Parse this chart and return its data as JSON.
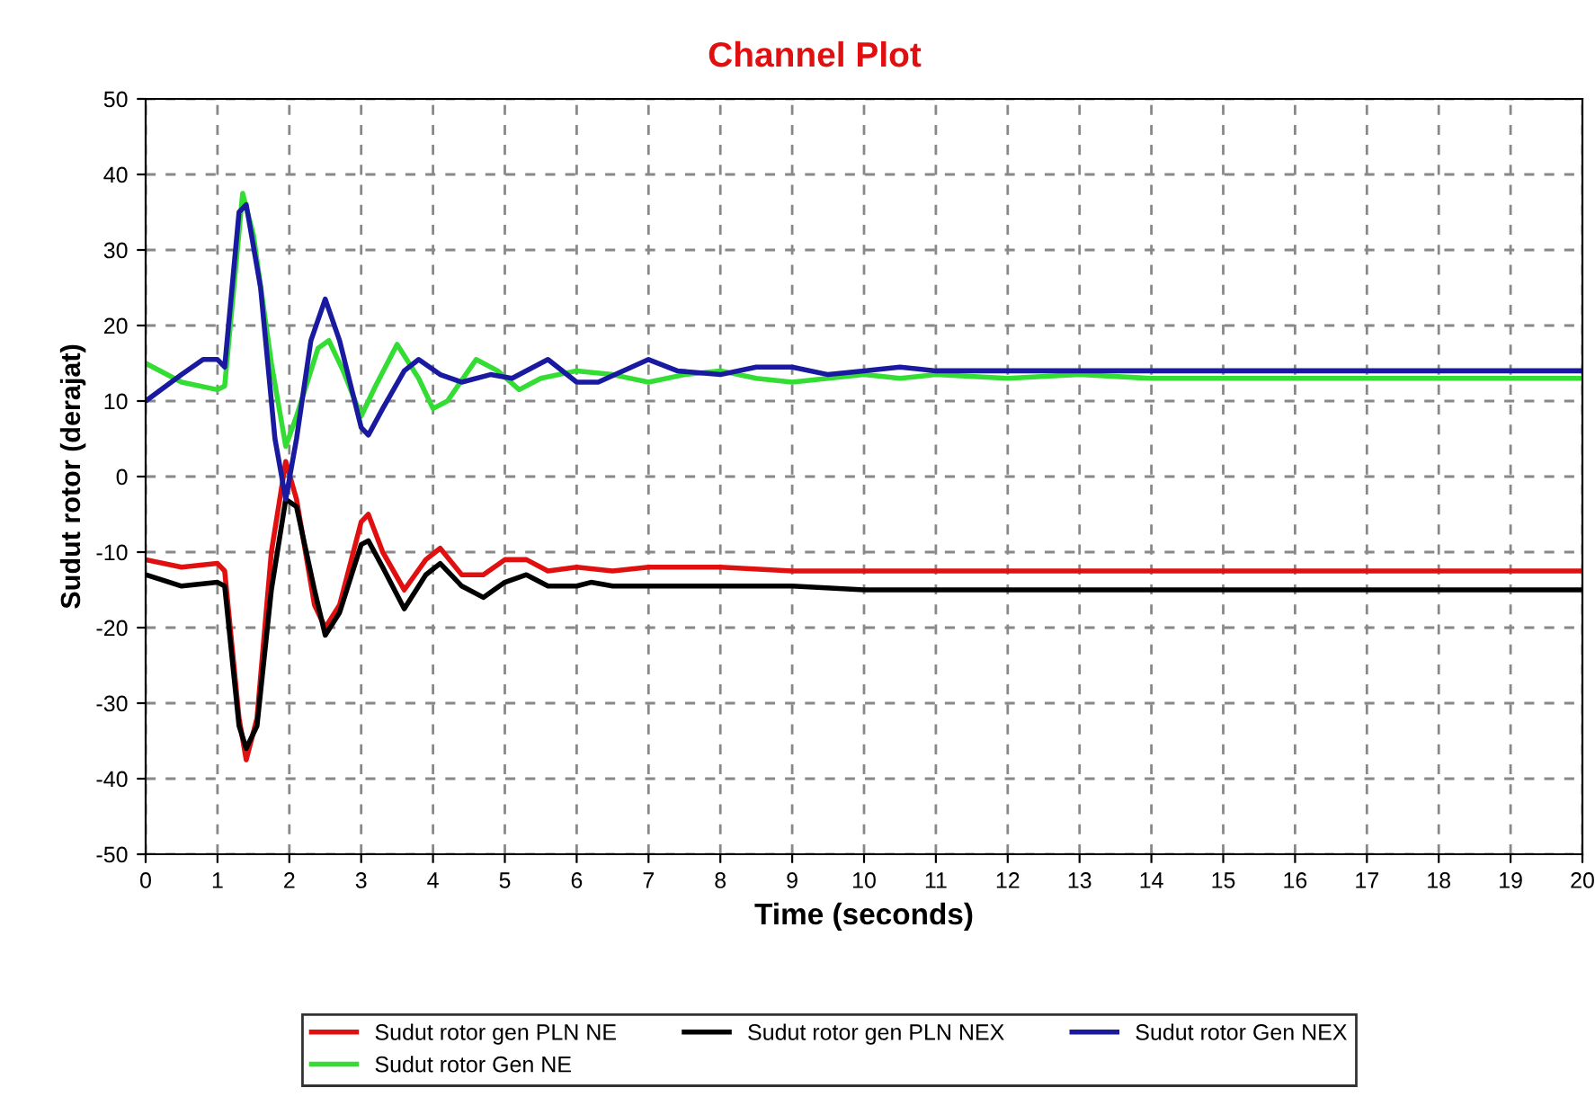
{
  "chart_data": {
    "type": "line",
    "title": "Channel Plot",
    "xlabel": "Time (seconds)",
    "ylabel": "Sudut rotor (derajat)",
    "xlim": [
      0,
      20
    ],
    "xticks": [
      0,
      1,
      2,
      3,
      4,
      5,
      6,
      7,
      8,
      9,
      10,
      11,
      12,
      13,
      14,
      15,
      16,
      17,
      18,
      19,
      20
    ],
    "ylim": [
      -50,
      50
    ],
    "yticks": [
      -50,
      -40,
      -30,
      -20,
      -10,
      0,
      10,
      20,
      30,
      40,
      50
    ],
    "grid": true,
    "legend": "bottom",
    "marker": "none",
    "line_style": "solid",
    "series": [
      {
        "name": "Sudut rotor gen PLN NE",
        "color": "#e01010",
        "x": [
          0,
          0.5,
          1.0,
          1.1,
          1.3,
          1.4,
          1.55,
          1.75,
          1.95,
          2.1,
          2.35,
          2.5,
          2.7,
          3.0,
          3.1,
          3.3,
          3.6,
          3.9,
          4.1,
          4.4,
          4.7,
          5.0,
          5.3,
          5.6,
          6.0,
          6.5,
          7,
          8,
          9,
          10,
          20
        ],
        "values": [
          -11,
          -12,
          -11.5,
          -12.5,
          -32,
          -37.5,
          -32,
          -10,
          2,
          -3,
          -17,
          -20,
          -17,
          -6,
          -5,
          -10,
          -15,
          -11,
          -9.5,
          -13,
          -13,
          -11,
          -11,
          -12.5,
          -12,
          -12.5,
          -12,
          -12,
          -12.5,
          -12.5,
          -12.5
        ]
      },
      {
        "name": "Sudut rotor Gen NE",
        "color": "#33dd33",
        "x": [
          0,
          0.5,
          1.0,
          1.1,
          1.35,
          1.5,
          1.75,
          1.95,
          2.1,
          2.4,
          2.55,
          2.75,
          3.0,
          3.2,
          3.5,
          3.8,
          4.0,
          4.2,
          4.6,
          4.9,
          5.2,
          5.5,
          6.0,
          6.5,
          7.0,
          7.5,
          8,
          8.5,
          9,
          9.5,
          10,
          10.5,
          11,
          12,
          13,
          14,
          20
        ],
        "values": [
          15,
          12.5,
          11.5,
          12,
          37.5,
          32,
          15,
          4,
          8,
          17,
          18,
          14,
          8,
          12,
          17.5,
          13,
          9,
          10,
          15.5,
          14,
          11.5,
          13,
          14,
          13.5,
          12.5,
          13.5,
          14,
          13,
          12.5,
          13,
          13.5,
          13,
          13.5,
          13,
          13.5,
          13,
          13
        ]
      },
      {
        "name": "Sudut rotor gen PLN NEX",
        "color": "#000000",
        "x": [
          0,
          0.5,
          1.0,
          1.1,
          1.3,
          1.4,
          1.55,
          1.75,
          1.95,
          2.1,
          2.35,
          2.5,
          2.7,
          3.0,
          3.1,
          3.3,
          3.6,
          3.9,
          4.1,
          4.4,
          4.7,
          5.0,
          5.3,
          5.6,
          6.0,
          6.2,
          6.5,
          7,
          8,
          9,
          10,
          20
        ],
        "values": [
          -13,
          -14.5,
          -14,
          -14.5,
          -33,
          -36,
          -33,
          -15,
          -3,
          -4,
          -15,
          -21,
          -18,
          -9,
          -8.5,
          -12,
          -17.5,
          -13,
          -11.5,
          -14.5,
          -16,
          -14,
          -13,
          -14.5,
          -14.5,
          -14,
          -14.5,
          -14.5,
          -14.5,
          -14.5,
          -15,
          -15
        ]
      },
      {
        "name": "Sudut rotor Gen NEX",
        "color": "#1a1aa0",
        "x": [
          0,
          0.5,
          0.8,
          1.0,
          1.1,
          1.3,
          1.4,
          1.6,
          1.8,
          1.95,
          2.1,
          2.3,
          2.5,
          2.7,
          3.0,
          3.1,
          3.3,
          3.6,
          3.8,
          4.1,
          4.4,
          4.8,
          5.1,
          5.6,
          6.0,
          6.3,
          7.0,
          7.4,
          8.0,
          8.5,
          9.0,
          9.5,
          10,
          10.5,
          11,
          12,
          20
        ],
        "values": [
          10,
          13.5,
          15.5,
          15.5,
          14.5,
          35,
          36,
          25,
          5,
          -3,
          5,
          18,
          23.5,
          18,
          6.5,
          5.5,
          9,
          14,
          15.5,
          13.5,
          12.5,
          13.5,
          13,
          15.5,
          12.5,
          12.5,
          15.5,
          14,
          13.5,
          14.5,
          14.5,
          13.5,
          14,
          14.5,
          14,
          14,
          14
        ]
      }
    ]
  }
}
